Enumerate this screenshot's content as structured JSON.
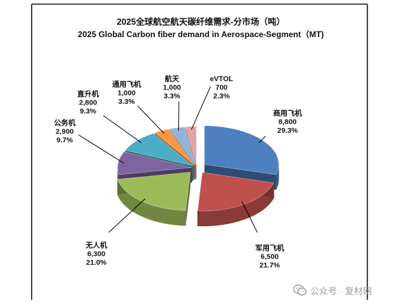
{
  "chart_data": {
    "type": "pie",
    "style": "3d-exploded",
    "title": "2025全球航空航天碳纤维需求-分市场（吨）",
    "subtitle": "2025 Global Carbon fiber demand in Aerospace-Segment（MT)",
    "unit": "MT",
    "slices": [
      {
        "name": "商用飞机",
        "value": 8800,
        "value_label": "8,800",
        "percent_label": "29.3%",
        "color": "#4e7fc0"
      },
      {
        "name": "军用飞机",
        "value": 6500,
        "value_label": "6,500",
        "percent_label": "21.7%",
        "color": "#c0504d"
      },
      {
        "name": "无人机",
        "value": 6300,
        "value_label": "6,300",
        "percent_label": "21.0%",
        "color": "#9bbb59"
      },
      {
        "name": "公务机",
        "value": 2900,
        "value_label": "2,900",
        "percent_label": "9.7%",
        "color": "#8064a2"
      },
      {
        "name": "直升机",
        "value": 2800,
        "value_label": "2,800",
        "percent_label": "9.3%",
        "color": "#4bacc6"
      },
      {
        "name": "通用飞机",
        "value": 1000,
        "value_label": "1,000",
        "percent_label": "3.3%",
        "color": "#f79646"
      },
      {
        "name": "航天",
        "value": 1000,
        "value_label": "1,000",
        "percent_label": "3.3%",
        "color": "#95b3d7"
      },
      {
        "name": "eVTOL",
        "value": 700,
        "value_label": "700",
        "percent_label": "2.3%",
        "color": "#e6a0a6"
      }
    ]
  },
  "watermark": {
    "icon": "wechat-icon",
    "text": "公众号 · 复材网"
  }
}
